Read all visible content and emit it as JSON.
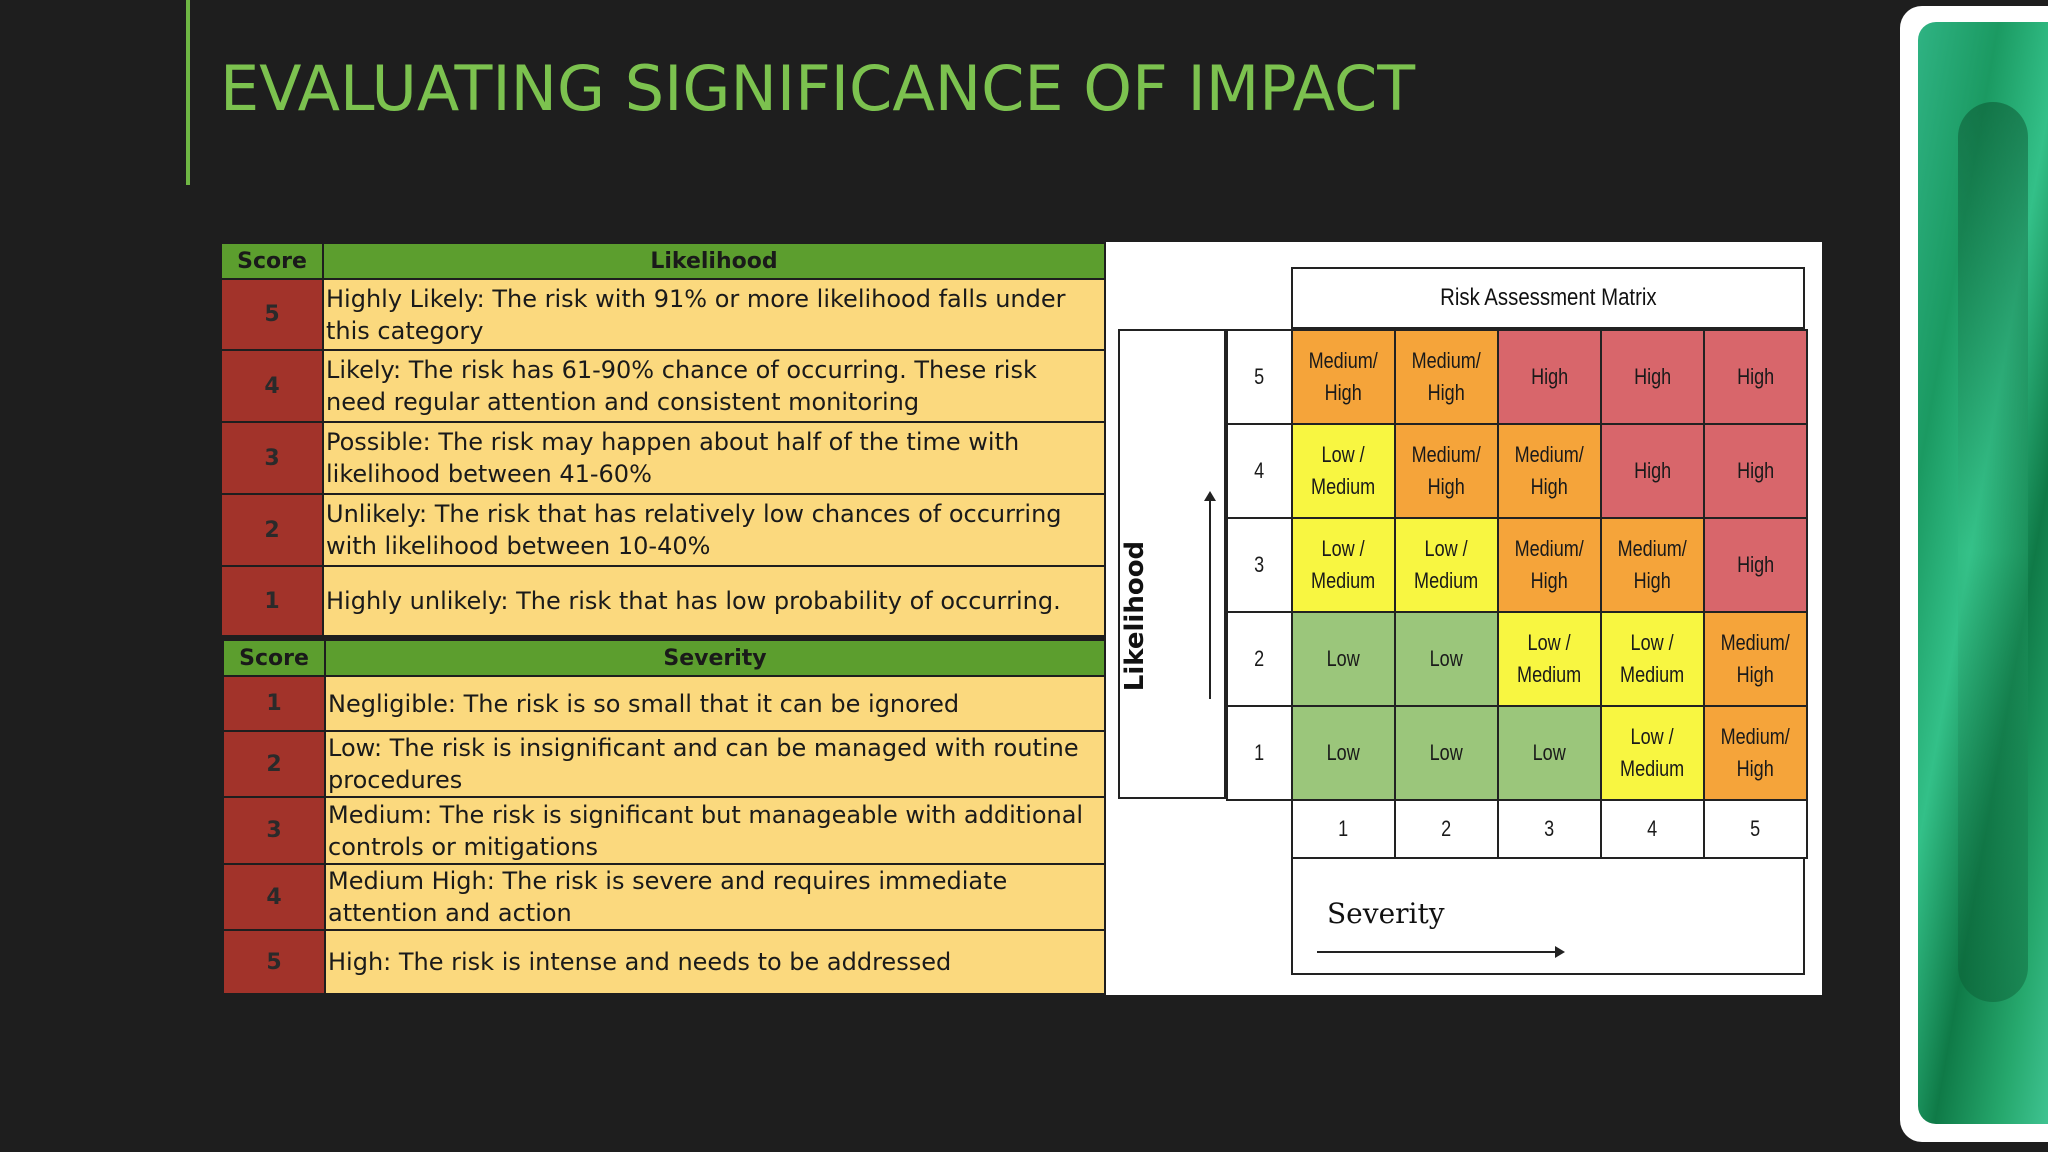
{
  "title": "EVALUATING SIGNIFICANCE OF IMPACT",
  "likelihood_table": {
    "headers": [
      "Score",
      "Likelihood"
    ],
    "rows": [
      {
        "score": "5",
        "desc": "Highly Likely: The risk with 91% or more likelihood falls under this category"
      },
      {
        "score": "4",
        "desc": "Likely: The risk has 61-90% chance of occurring. These risk need regular attention and consistent monitoring"
      },
      {
        "score": "3",
        "desc": "Possible: The risk may happen about half of the time with likelihood between 41-60%"
      },
      {
        "score": "2",
        "desc": "Unlikely: The risk that has relatively low chances of occurring with likelihood between 10-40%"
      },
      {
        "score": "1",
        "desc": "Highly unlikely: The risk that has low probability of occurring."
      }
    ]
  },
  "severity_table": {
    "headers": [
      "Score",
      "Severity"
    ],
    "rows": [
      {
        "score": "1",
        "desc": "Negligible: The risk is so small that it can be ignored"
      },
      {
        "score": "2",
        "desc": "Low: The risk is insignificant and can be managed with routine procedures"
      },
      {
        "score": "3",
        "desc": "Medium: The risk is significant but manageable with additional controls or mitigations"
      },
      {
        "score": "4",
        "desc": "Medium High: The risk is severe and requires immediate attention and action"
      },
      {
        "score": "5",
        "desc": "High: The risk is intense and needs to be addressed"
      }
    ]
  },
  "matrix": {
    "title": "Risk Assessment Matrix",
    "y_label": "Likelihood",
    "x_label": "Severity",
    "row_scores": [
      "5",
      "4",
      "3",
      "2",
      "1"
    ],
    "col_scores": [
      "1",
      "2",
      "3",
      "4",
      "5"
    ],
    "colors": {
      "high": "#d8666b",
      "medhigh": "#f5a43a",
      "lowmed": "#f8f641",
      "low": "#9bc67b"
    },
    "rows": [
      [
        {
          "t": "Medium/\nHigh",
          "c": "medhigh"
        },
        {
          "t": "Medium/\nHigh",
          "c": "medhigh"
        },
        {
          "t": "High",
          "c": "high"
        },
        {
          "t": "High",
          "c": "high"
        },
        {
          "t": "High",
          "c": "high"
        }
      ],
      [
        {
          "t": "Low /\nMedium",
          "c": "lowmed"
        },
        {
          "t": "Medium/\nHigh",
          "c": "medhigh"
        },
        {
          "t": "Medium/\nHigh",
          "c": "medhigh"
        },
        {
          "t": "High",
          "c": "high"
        },
        {
          "t": "High",
          "c": "high"
        }
      ],
      [
        {
          "t": "Low /\nMedium",
          "c": "lowmed"
        },
        {
          "t": "Low /\nMedium",
          "c": "lowmed"
        },
        {
          "t": "Medium/\nHigh",
          "c": "medhigh"
        },
        {
          "t": "Medium/\nHigh",
          "c": "medhigh"
        },
        {
          "t": "High",
          "c": "high"
        }
      ],
      [
        {
          "t": "Low",
          "c": "low"
        },
        {
          "t": "Low",
          "c": "low"
        },
        {
          "t": "Low /\nMedium",
          "c": "lowmed"
        },
        {
          "t": "Low /\nMedium",
          "c": "lowmed"
        },
        {
          "t": "Medium/\nHigh",
          "c": "medhigh"
        }
      ],
      [
        {
          "t": "Low",
          "c": "low"
        },
        {
          "t": "Low",
          "c": "low"
        },
        {
          "t": "Low",
          "c": "low"
        },
        {
          "t": "Low /\nMedium",
          "c": "lowmed"
        },
        {
          "t": "Medium/\nHigh",
          "c": "medhigh"
        }
      ]
    ]
  }
}
